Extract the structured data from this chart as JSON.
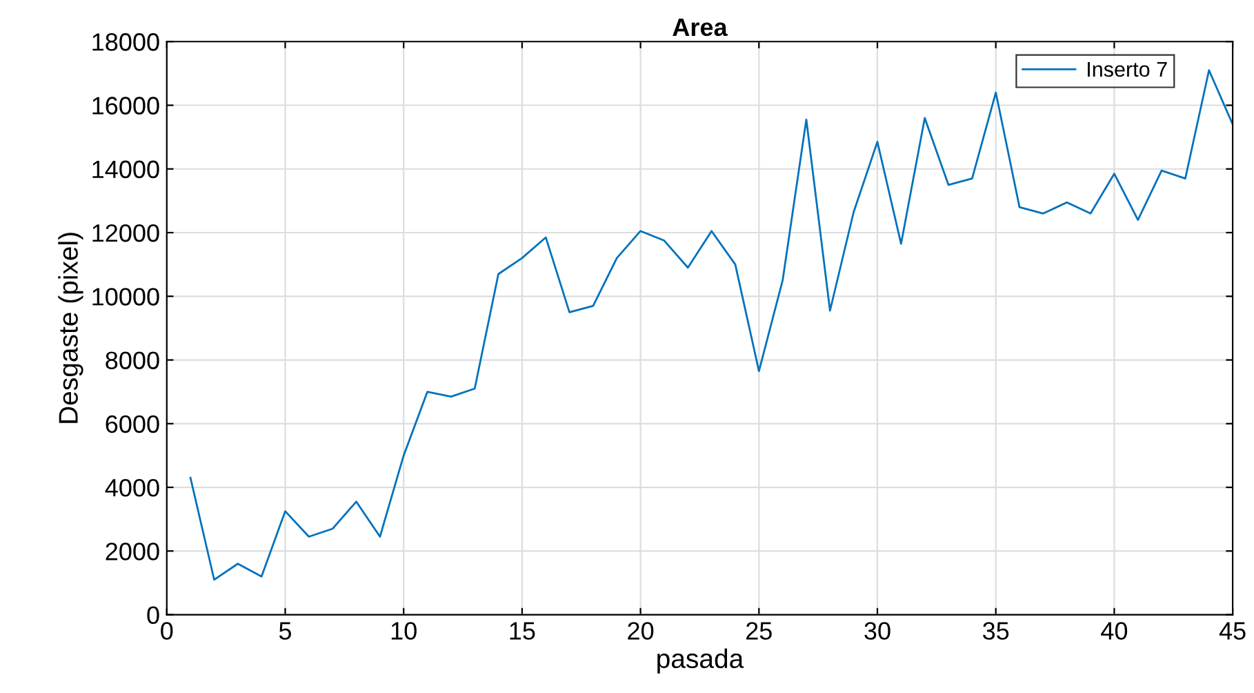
{
  "chart_data": {
    "type": "line",
    "title": "Area",
    "xlabel": "pasada",
    "ylabel": "Desgaste (pixel)",
    "x": [
      1,
      2,
      3,
      4,
      5,
      6,
      7,
      8,
      9,
      10,
      11,
      12,
      13,
      14,
      15,
      16,
      17,
      18,
      19,
      20,
      21,
      22,
      23,
      24,
      25,
      26,
      27,
      28,
      29,
      30,
      31,
      32,
      33,
      34,
      35,
      36,
      37,
      38,
      39,
      40,
      41,
      42,
      43,
      44,
      45
    ],
    "series": [
      {
        "name": "Inserto 7",
        "color": "#0072bd",
        "values": [
          4300,
          1100,
          1600,
          1200,
          3250,
          2450,
          2700,
          3550,
          2450,
          5000,
          7000,
          6850,
          7100,
          10700,
          11200,
          11850,
          9500,
          9700,
          11200,
          12050,
          11750,
          10900,
          12050,
          11000,
          7650,
          10500,
          15550,
          9550,
          12650,
          14850,
          11650,
          15600,
          13500,
          13700,
          16400,
          12800,
          12600,
          12950,
          12600,
          13850,
          12400,
          13950,
          13700,
          17100,
          15400
        ]
      }
    ],
    "xlim": [
      0,
      45
    ],
    "xticks": [
      0,
      5,
      10,
      15,
      20,
      25,
      30,
      35,
      40,
      45
    ],
    "ylim": [
      0,
      18000
    ],
    "yticks": [
      0,
      2000,
      4000,
      6000,
      8000,
      10000,
      12000,
      14000,
      16000,
      18000
    ],
    "grid": true,
    "legend": "top right"
  }
}
